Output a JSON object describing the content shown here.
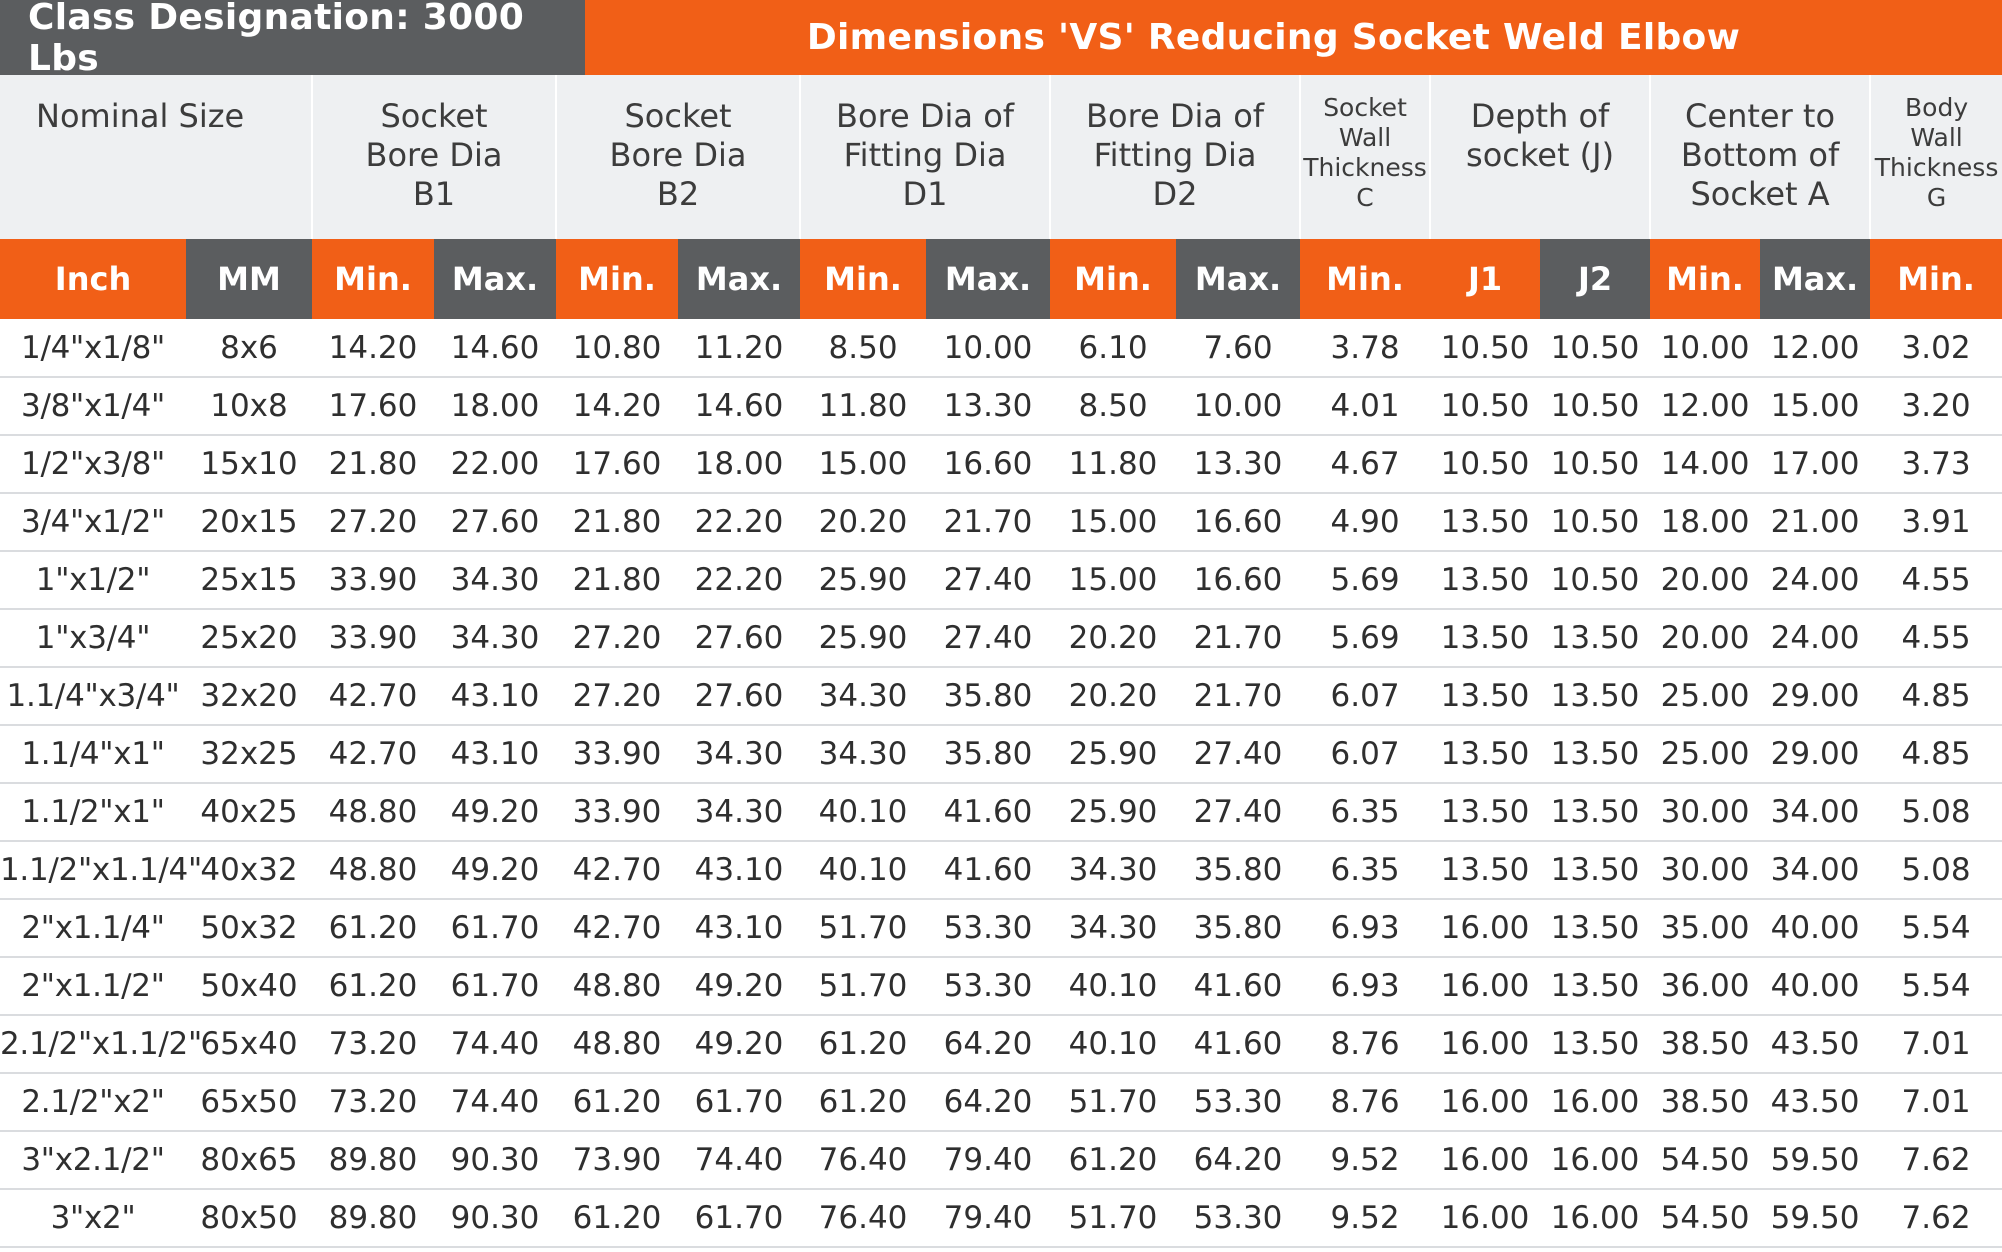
{
  "header": {
    "class_designation": "Class Designation: 3000 Lbs",
    "title": "Dimensions 'VS' Reducing Socket Weld Elbow"
  },
  "columns": [
    {
      "line1": "Nominal Size",
      "line2": "",
      "line3": "",
      "line4": ""
    },
    {
      "line1": "Socket",
      "line2": "Bore Dia",
      "line3": "B1",
      "line4": ""
    },
    {
      "line1": "Socket",
      "line2": "Bore Dia",
      "line3": "B2",
      "line4": ""
    },
    {
      "line1": "Bore Dia of",
      "line2": "Fitting Dia",
      "line3": "D1",
      "line4": ""
    },
    {
      "line1": "Bore Dia of",
      "line2": "Fitting Dia",
      "line3": "D2",
      "line4": ""
    },
    {
      "line1": "Socket",
      "line2": "Wall",
      "line3": "Thickness",
      "line4": "C"
    },
    {
      "line1": "Depth of",
      "line2": "socket (J)",
      "line3": "",
      "line4": ""
    },
    {
      "line1": "Center to",
      "line2": "Bottom of",
      "line3": "Socket A",
      "line4": ""
    },
    {
      "line1": "Body",
      "line2": "Wall",
      "line3": "Thickness",
      "line4": "G"
    }
  ],
  "subheaders": [
    "Inch",
    "MM",
    "Min.",
    "Max.",
    "Min.",
    "Max.",
    "Min.",
    "Max.",
    "Min.",
    "Max.",
    "Min.",
    "J1",
    "J2",
    "Min.",
    "Max.",
    "Min."
  ],
  "rows": [
    [
      "1/4\"x1/8\"",
      "8x6",
      "14.20",
      "14.60",
      "10.80",
      "11.20",
      "8.50",
      "10.00",
      "6.10",
      "7.60",
      "3.78",
      "10.50",
      "10.50",
      "10.00",
      "12.00",
      "3.02"
    ],
    [
      "3/8\"x1/4\"",
      "10x8",
      "17.60",
      "18.00",
      "14.20",
      "14.60",
      "11.80",
      "13.30",
      "8.50",
      "10.00",
      "4.01",
      "10.50",
      "10.50",
      "12.00",
      "15.00",
      "3.20"
    ],
    [
      "1/2\"x3/8\"",
      "15x10",
      "21.80",
      "22.00",
      "17.60",
      "18.00",
      "15.00",
      "16.60",
      "11.80",
      "13.30",
      "4.67",
      "10.50",
      "10.50",
      "14.00",
      "17.00",
      "3.73"
    ],
    [
      "3/4\"x1/2\"",
      "20x15",
      "27.20",
      "27.60",
      "21.80",
      "22.20",
      "20.20",
      "21.70",
      "15.00",
      "16.60",
      "4.90",
      "13.50",
      "10.50",
      "18.00",
      "21.00",
      "3.91"
    ],
    [
      "1\"x1/2\"",
      "25x15",
      "33.90",
      "34.30",
      "21.80",
      "22.20",
      "25.90",
      "27.40",
      "15.00",
      "16.60",
      "5.69",
      "13.50",
      "10.50",
      "20.00",
      "24.00",
      "4.55"
    ],
    [
      "1\"x3/4\"",
      "25x20",
      "33.90",
      "34.30",
      "27.20",
      "27.60",
      "25.90",
      "27.40",
      "20.20",
      "21.70",
      "5.69",
      "13.50",
      "13.50",
      "20.00",
      "24.00",
      "4.55"
    ],
    [
      "1.1/4\"x3/4\"",
      "32x20",
      "42.70",
      "43.10",
      "27.20",
      "27.60",
      "34.30",
      "35.80",
      "20.20",
      "21.70",
      "6.07",
      "13.50",
      "13.50",
      "25.00",
      "29.00",
      "4.85"
    ],
    [
      "1.1/4\"x1\"",
      "32x25",
      "42.70",
      "43.10",
      "33.90",
      "34.30",
      "34.30",
      "35.80",
      "25.90",
      "27.40",
      "6.07",
      "13.50",
      "13.50",
      "25.00",
      "29.00",
      "4.85"
    ],
    [
      "1.1/2\"x1\"",
      "40x25",
      "48.80",
      "49.20",
      "33.90",
      "34.30",
      "40.10",
      "41.60",
      "25.90",
      "27.40",
      "6.35",
      "13.50",
      "13.50",
      "30.00",
      "34.00",
      "5.08"
    ],
    [
      "1.1/2\"x1.1/4\"",
      "40x32",
      "48.80",
      "49.20",
      "42.70",
      "43.10",
      "40.10",
      "41.60",
      "34.30",
      "35.80",
      "6.35",
      "13.50",
      "13.50",
      "30.00",
      "34.00",
      "5.08"
    ],
    [
      "2\"x1.1/4\"",
      "50x32",
      "61.20",
      "61.70",
      "42.70",
      "43.10",
      "51.70",
      "53.30",
      "34.30",
      "35.80",
      "6.93",
      "16.00",
      "13.50",
      "35.00",
      "40.00",
      "5.54"
    ],
    [
      "2\"x1.1/2\"",
      "50x40",
      "61.20",
      "61.70",
      "48.80",
      "49.20",
      "51.70",
      "53.30",
      "40.10",
      "41.60",
      "6.93",
      "16.00",
      "13.50",
      "36.00",
      "40.00",
      "5.54"
    ],
    [
      "2.1/2\"x1.1/2\"",
      "65x40",
      "73.20",
      "74.40",
      "48.80",
      "49.20",
      "61.20",
      "64.20",
      "40.10",
      "41.60",
      "8.76",
      "16.00",
      "13.50",
      "38.50",
      "43.50",
      "7.01"
    ],
    [
      "2.1/2\"x2\"",
      "65x50",
      "73.20",
      "74.40",
      "61.20",
      "61.70",
      "61.20",
      "64.20",
      "51.70",
      "53.30",
      "8.76",
      "16.00",
      "16.00",
      "38.50",
      "43.50",
      "7.01"
    ],
    [
      "3\"x2.1/2\"",
      "80x65",
      "89.80",
      "90.30",
      "73.90",
      "74.40",
      "76.40",
      "79.40",
      "61.20",
      "64.20",
      "9.52",
      "16.00",
      "16.00",
      "54.50",
      "59.50",
      "7.62"
    ],
    [
      "3\"x2\"",
      "80x50",
      "89.80",
      "90.30",
      "61.20",
      "61.70",
      "76.40",
      "79.40",
      "51.70",
      "53.30",
      "9.52",
      "16.00",
      "16.00",
      "54.50",
      "59.50",
      "7.62"
    ]
  ],
  "colors": {
    "orange": "#f15f17",
    "gray": "#5b5d5f",
    "header_bg": "#eef0f2",
    "text": "#2f2f2f"
  }
}
